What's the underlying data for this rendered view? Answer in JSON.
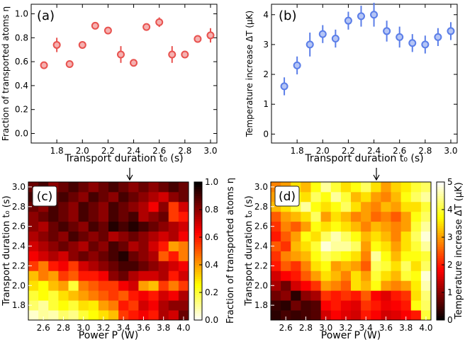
{
  "chart_data": [
    {
      "panel": "(a)",
      "type": "scatter",
      "xlabel": "Transport duration t₀ (s)",
      "ylabel": "Fraction of transported atoms η",
      "xlim": [
        1.6,
        3.05
      ],
      "ylim": [
        -0.08,
        1.08
      ],
      "xticks": [
        "1.8",
        "2.0",
        "2.2",
        "2.4",
        "2.6",
        "2.8",
        "3.0"
      ],
      "yticks": [
        "0.0",
        "0.2",
        "0.4",
        "0.6",
        "0.8",
        "1.0"
      ],
      "marker_color": "#e8524f",
      "x": [
        1.7,
        1.8,
        1.9,
        2.0,
        2.1,
        2.2,
        2.3,
        2.4,
        2.5,
        2.6,
        2.7,
        2.8,
        2.9,
        3.0
      ],
      "y": [
        0.57,
        0.74,
        0.58,
        0.74,
        0.9,
        0.86,
        0.66,
        0.59,
        0.89,
        0.93,
        0.66,
        0.66,
        0.79,
        0.82
      ],
      "yerr": [
        0.02,
        0.06,
        0.02,
        0.03,
        0.02,
        0.02,
        0.07,
        0.02,
        0.02,
        0.04,
        0.07,
        0.03,
        0.03,
        0.06
      ]
    },
    {
      "panel": "(b)",
      "type": "scatter",
      "xlabel": "Transport duration t₀ (s)",
      "ylabel": "Temperature increase ΔT (μK)",
      "xlim": [
        1.6,
        3.05
      ],
      "ylim": [
        -0.3,
        4.35
      ],
      "xticks": [
        "1.8",
        "2.0",
        "2.2",
        "2.4",
        "2.6",
        "2.8",
        "3.0"
      ],
      "yticks": [
        "0",
        "1",
        "2",
        "3",
        "4"
      ],
      "marker_color": "#5b7ee8",
      "x": [
        1.7,
        1.8,
        1.9,
        2.0,
        2.1,
        2.2,
        2.3,
        2.4,
        2.5,
        2.6,
        2.7,
        2.8,
        2.9,
        3.0
      ],
      "y": [
        1.6,
        2.3,
        3.0,
        3.35,
        3.2,
        3.8,
        3.95,
        4.0,
        3.45,
        3.25,
        3.05,
        3.0,
        3.25,
        3.45
      ],
      "yerr": [
        0.3,
        0.3,
        0.4,
        0.3,
        0.3,
        0.3,
        0.35,
        0.4,
        0.35,
        0.35,
        0.3,
        0.3,
        0.3,
        0.3
      ]
    },
    {
      "panel": "(c)",
      "type": "heatmap",
      "xlabel": "Power P (W)",
      "ylabel": "Transport duration t₀ (s)",
      "colorbar_label": "Fraction of transported atoms η",
      "colormap": "hot_reversed",
      "vmin": 0.0,
      "vmax": 1.0,
      "colorbar_ticks": [
        "0.0",
        "0.2",
        "0.4",
        "0.6",
        "0.8",
        "1.0"
      ],
      "x": [
        2.5,
        2.6,
        2.7,
        2.8,
        2.9,
        3.0,
        3.1,
        3.2,
        3.3,
        3.4,
        3.5,
        3.6,
        3.7,
        3.8,
        3.9,
        4.0
      ],
      "y": [
        1.7,
        1.8,
        1.9,
        2.0,
        2.1,
        2.2,
        2.3,
        2.4,
        2.5,
        2.6,
        2.7,
        2.8,
        2.9,
        3.0
      ],
      "xticks": [
        "2.6",
        "2.8",
        "3.0",
        "3.2",
        "3.4",
        "3.6",
        "3.8",
        "4.0"
      ],
      "yticks": [
        "1.8",
        "2.0",
        "2.2",
        "2.4",
        "2.6",
        "2.8",
        "3.0"
      ],
      "arrow_x": 3.5,
      "z": [
        [
          0.05,
          0.1,
          0.08,
          0.15,
          0.12,
          0.2,
          0.25,
          0.3,
          0.35,
          0.55,
          0.6,
          0.65,
          0.6,
          0.75,
          0.7,
          0.85
        ],
        [
          0.15,
          0.1,
          0.2,
          0.25,
          0.2,
          0.3,
          0.28,
          0.4,
          0.45,
          0.6,
          0.55,
          0.7,
          0.65,
          0.75,
          0.8,
          0.8
        ],
        [
          0.2,
          0.25,
          0.2,
          0.3,
          0.35,
          0.4,
          0.45,
          0.5,
          0.55,
          0.5,
          0.6,
          0.65,
          0.6,
          0.7,
          0.65,
          0.75
        ],
        [
          0.3,
          0.25,
          0.35,
          0.4,
          0.2,
          0.45,
          0.5,
          0.55,
          0.55,
          0.65,
          0.7,
          0.4,
          0.35,
          0.55,
          0.45,
          0.55
        ],
        [
          0.35,
          0.45,
          0.4,
          0.55,
          0.5,
          0.6,
          0.6,
          0.65,
          0.8,
          0.85,
          0.75,
          0.7,
          0.7,
          0.75,
          0.6,
          0.7
        ],
        [
          0.55,
          0.45,
          0.6,
          0.65,
          0.55,
          0.7,
          0.75,
          0.8,
          0.85,
          0.9,
          0.9,
          0.85,
          0.8,
          0.75,
          0.7,
          0.65
        ],
        [
          0.65,
          0.7,
          0.75,
          0.7,
          0.8,
          0.85,
          0.8,
          0.85,
          0.9,
          0.95,
          0.85,
          0.8,
          0.75,
          0.5,
          0.6,
          0.45
        ],
        [
          0.7,
          0.75,
          0.8,
          0.85,
          0.8,
          0.75,
          0.85,
          0.8,
          0.9,
          0.85,
          0.75,
          0.8,
          0.7,
          0.6,
          0.4,
          0.45
        ],
        [
          0.75,
          0.8,
          0.85,
          0.8,
          0.9,
          0.85,
          0.8,
          0.85,
          0.75,
          0.8,
          0.85,
          0.8,
          0.75,
          0.7,
          0.75,
          0.65
        ],
        [
          0.8,
          0.75,
          0.85,
          0.9,
          0.85,
          0.8,
          0.9,
          0.85,
          0.95,
          0.9,
          0.95,
          0.9,
          0.85,
          0.8,
          0.75,
          0.7
        ],
        [
          0.8,
          0.85,
          0.9,
          0.85,
          0.8,
          0.9,
          0.85,
          0.8,
          0.9,
          0.85,
          0.9,
          0.75,
          0.8,
          0.85,
          0.55,
          0.6
        ],
        [
          0.85,
          0.8,
          0.9,
          0.85,
          0.8,
          0.9,
          0.85,
          0.8,
          0.9,
          0.85,
          0.8,
          0.75,
          0.65,
          0.8,
          0.55,
          0.7
        ],
        [
          0.9,
          0.8,
          0.85,
          0.9,
          0.85,
          0.8,
          0.9,
          0.85,
          0.8,
          0.9,
          0.85,
          0.8,
          0.75,
          0.7,
          0.8,
          0.85
        ],
        [
          0.85,
          0.9,
          0.8,
          0.85,
          0.9,
          0.85,
          0.8,
          0.85,
          0.9,
          0.85,
          0.8,
          0.85,
          0.8,
          0.85,
          0.9,
          0.85
        ]
      ]
    },
    {
      "panel": "(d)",
      "type": "heatmap",
      "xlabel": "Power P (W)",
      "ylabel": "Transport duration t₀ (s)",
      "colorbar_label": "Temperature increase ΔT (μK)",
      "colormap": "hot",
      "vmin": 0.0,
      "vmax": 5.0,
      "colorbar_ticks": [
        "0",
        "1",
        "2",
        "3",
        "4",
        "5"
      ],
      "x": [
        2.5,
        2.6,
        2.7,
        2.8,
        2.9,
        3.0,
        3.1,
        3.2,
        3.3,
        3.4,
        3.5,
        3.6,
        3.7,
        3.8,
        3.9,
        4.0
      ],
      "y": [
        1.7,
        1.8,
        1.9,
        2.0,
        2.1,
        2.2,
        2.3,
        2.4,
        2.5,
        2.6,
        2.7,
        2.8,
        2.9,
        3.0
      ],
      "xticks": [
        "2.6",
        "2.8",
        "3.0",
        "3.2",
        "3.4",
        "3.6",
        "3.8",
        "4.0"
      ],
      "yticks": [
        "1.8",
        "2.0",
        "2.2",
        "2.4",
        "2.6",
        "2.8",
        "3.0"
      ],
      "arrow_x": 3.5,
      "z": [
        [
          0.3,
          0.5,
          0.4,
          0.5,
          0.6,
          1.5,
          1.8,
          1.6,
          1.5,
          2.0,
          1.8,
          1.5,
          1.6,
          1.8,
          2.0,
          4.0
        ],
        [
          0.4,
          0.3,
          0.8,
          0.5,
          0.6,
          1.8,
          2.0,
          1.7,
          1.6,
          2.2,
          2.0,
          1.7,
          1.8,
          2.0,
          3.8,
          4.2
        ],
        [
          0.8,
          1.0,
          0.3,
          1.0,
          1.2,
          2.2,
          2.0,
          2.2,
          2.0,
          2.5,
          1.8,
          1.6,
          2.0,
          2.2,
          3.5,
          4.3
        ],
        [
          1.2,
          0.8,
          1.5,
          1.8,
          2.2,
          3.0,
          2.8,
          2.5,
          3.5,
          3.2,
          3.8,
          3.0,
          2.8,
          3.0,
          3.6,
          4.6
        ],
        [
          1.5,
          1.8,
          2.0,
          2.5,
          3.0,
          3.5,
          3.2,
          2.8,
          3.5,
          3.0,
          4.0,
          3.5,
          3.2,
          4.0,
          3.8,
          4.8
        ],
        [
          2.0,
          2.5,
          2.2,
          2.8,
          3.5,
          3.8,
          3.0,
          3.2,
          3.0,
          2.5,
          4.2,
          4.0,
          3.5,
          4.2,
          3.5,
          4.2
        ],
        [
          2.2,
          2.8,
          3.0,
          3.2,
          3.8,
          4.2,
          4.0,
          3.8,
          3.5,
          2.8,
          4.5,
          3.8,
          3.2,
          3.8,
          3.8,
          4.0
        ],
        [
          2.5,
          2.2,
          3.2,
          3.5,
          4.0,
          4.8,
          4.5,
          4.5,
          4.2,
          3.0,
          3.8,
          3.5,
          3.0,
          3.5,
          4.0,
          4.5
        ],
        [
          2.0,
          2.5,
          3.0,
          3.8,
          3.5,
          4.2,
          4.6,
          4.2,
          3.8,
          3.2,
          3.5,
          3.2,
          2.8,
          3.5,
          4.2,
          4.8
        ],
        [
          2.2,
          2.8,
          2.5,
          3.0,
          3.8,
          3.5,
          3.8,
          3.5,
          3.2,
          2.8,
          3.2,
          3.0,
          2.8,
          3.0,
          4.0,
          4.5
        ],
        [
          2.5,
          3.0,
          3.2,
          3.5,
          4.2,
          3.0,
          3.5,
          3.2,
          2.8,
          3.0,
          2.6,
          2.8,
          2.5,
          3.0,
          3.8,
          4.2
        ],
        [
          3.2,
          3.5,
          4.0,
          4.5,
          3.8,
          3.5,
          3.8,
          4.2,
          3.5,
          3.0,
          2.8,
          3.2,
          3.0,
          3.5,
          3.5,
          4.0
        ],
        [
          3.0,
          3.2,
          3.8,
          3.5,
          4.2,
          3.8,
          4.5,
          4.0,
          3.2,
          3.5,
          3.0,
          2.8,
          3.2,
          3.8,
          4.2,
          4.5
        ],
        [
          2.8,
          3.0,
          3.5,
          3.2,
          3.8,
          4.5,
          4.0,
          3.5,
          3.8,
          4.2,
          3.5,
          3.0,
          3.4,
          3.6,
          4.0,
          4.2
        ]
      ]
    }
  ]
}
